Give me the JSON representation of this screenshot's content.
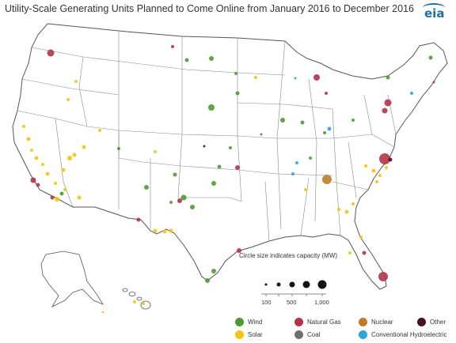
{
  "title": "Utility-Scale Generating Units Planned to Come Online from January 2016 to December 2016",
  "logo": "eia",
  "size_legend": {
    "title": "Circle size indicates capacity (MW)",
    "labels": [
      "100",
      "500",
      "1,000"
    ]
  },
  "legend": [
    {
      "label": "Wind",
      "color": "#4e9a32"
    },
    {
      "label": "Natural Gas",
      "color": "#b5324a"
    },
    {
      "label": "Nuclear",
      "color": "#c27a2a"
    },
    {
      "label": "Other",
      "color": "#4a1220"
    },
    {
      "label": "Solar",
      "color": "#f2c511"
    },
    {
      "label": "Coal",
      "color": "#707070"
    },
    {
      "label": "Conventional Hydroelectric",
      "color": "#2ea4d8"
    }
  ]
}
